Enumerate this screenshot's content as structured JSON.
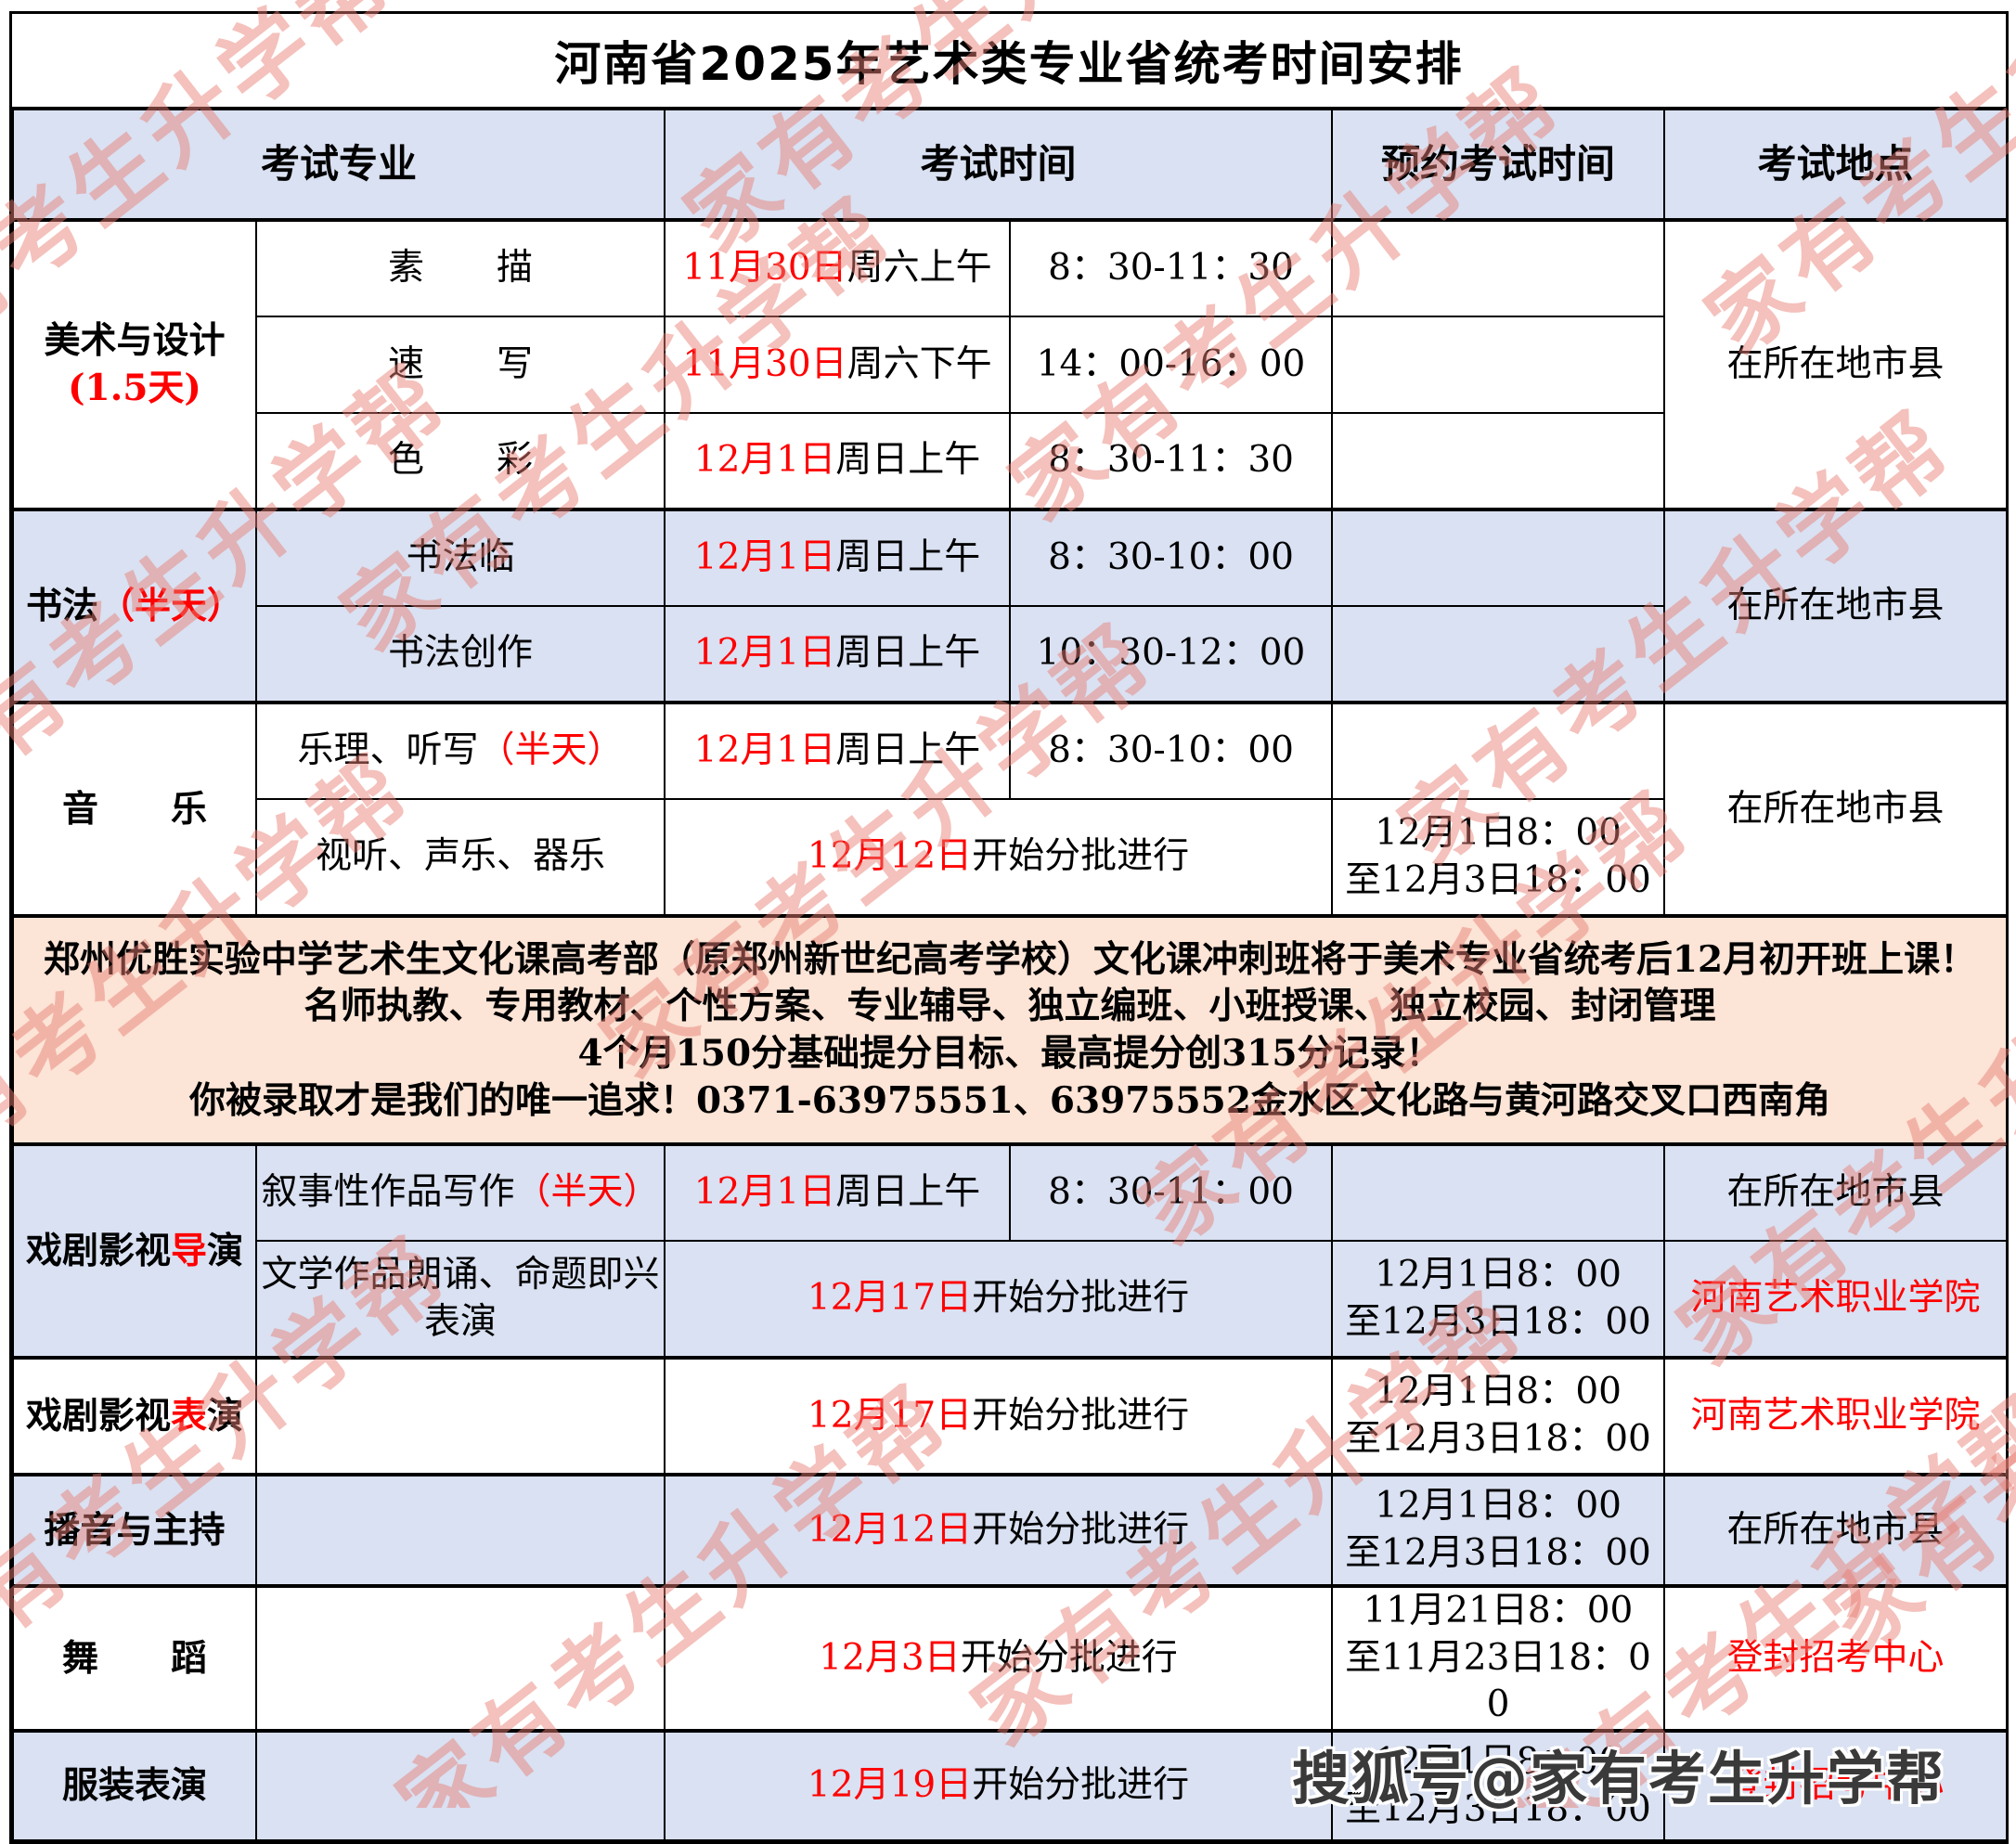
{
  "title": "河南省2025年艺术类专业省统考时间安排",
  "colors": {
    "band_blue": "#D9E1F2",
    "notice_bg": "#FCE4D6",
    "accent_red": "#FF0000",
    "watermark_pink": "#E97D73"
  },
  "table": {
    "headers": {
      "exam_major": "考试专业",
      "exam_time": "考试时间",
      "booking_time": "预约考试时间",
      "exam_location": "考试地点"
    },
    "art_design": {
      "name": "美术与设计",
      "days": "(1.5天)",
      "sub": [
        {
          "subject": "素　　描",
          "date": "11月30日",
          "period": "周六上午",
          "time": "8：30-11：30"
        },
        {
          "subject": "速　　写",
          "date": "11月30日",
          "period": "周六下午",
          "time": "14：00-16：00"
        },
        {
          "subject": "色　　彩",
          "date": "12月1日",
          "period": "周日上午",
          "time": "8：30-11：30"
        }
      ],
      "location": "在所在地市县"
    },
    "calligraphy": {
      "name": "书法",
      "days": "（半天）",
      "sub": [
        {
          "subject": "书法临",
          "date": "12月1日",
          "period": "周日上午",
          "time": "8：30-10：00"
        },
        {
          "subject": "书法创作",
          "date": "12月1日",
          "period": "周日上午",
          "time": "10：30-12：00"
        }
      ],
      "location": "在所在地市县"
    },
    "music": {
      "name": "音　　乐",
      "sub1": {
        "subject": "乐理、听写",
        "subject_red": "（半天）",
        "date": "12月1日",
        "period": "周日上午",
        "time": "8：30-10：00"
      },
      "sub2": {
        "subject": "视听、声乐、器乐",
        "date": "12月12日",
        "rest": "开始分批进行",
        "booking1": "12月1日8：00",
        "booking2": "至12月3日18：00"
      },
      "location": "在所在地市县"
    },
    "notice": {
      "line1": "郑州优胜实验中学艺术生文化课高考部（原郑州新世纪高考学校）文化课冲刺班将于美术专业省统考后12月初开班上课！",
      "line2": "名师执教、专用教材、个性方案、专业辅导、独立编班、小班授课、独立校园、封闭管理",
      "line3": "4个月150分基础提分目标、最高提分创315分记录！",
      "line4": "你被录取才是我们的唯一追求！0371-63975551、63975552金水区文化路与黄河路交叉口西南角"
    },
    "drama_directing": {
      "name_pre": "戏剧影视",
      "name_red": "导",
      "name_post": "演",
      "sub1": {
        "subject": "叙事性作品写作",
        "subject_red": "（半天）",
        "date": "12月1日",
        "period": "周日上午",
        "time": "8：30-11：00",
        "location": "在所在地市县"
      },
      "sub2": {
        "subject": "文学作品朗诵、命题即兴表演",
        "date": "12月17日",
        "rest": "开始分批进行",
        "booking1": "12月1日8：00",
        "booking2": "至12月3日18：00",
        "location": "河南艺术职业学院"
      }
    },
    "drama_acting": {
      "name_pre": "戏剧影视",
      "name_red": "表",
      "name_post": "演",
      "date": "12月17日",
      "rest": "开始分批进行",
      "booking1": "12月1日8：00",
      "booking2": "至12月3日18：00",
      "location": "河南艺术职业学院"
    },
    "broadcasting": {
      "name": "播音与主持",
      "date": "12月12日",
      "rest": "开始分批进行",
      "booking1": "12月1日8：00",
      "booking2": "至12月3日18：00",
      "location": "在所在地市县"
    },
    "dance": {
      "name": "舞　　蹈",
      "date": "12月3日",
      "rest": "开始分批进行",
      "booking1": "11月21日8：00",
      "booking2": "至11月23日18：00",
      "location": "登封招考中心"
    },
    "fashion": {
      "name": "服装表演",
      "date": "12月19日",
      "rest": "开始分批进行",
      "booking1": "12月1日8：00",
      "booking2": "至12月3日18：00",
      "location": "登封招考中心"
    }
  },
  "watermark": {
    "diagonal": "家有考生升学帮",
    "sohu": "搜狐号@家有考生升学帮",
    "positions": [
      [
        -120,
        430
      ],
      [
        790,
        270
      ],
      [
        1890,
        380
      ],
      [
        -60,
        880
      ],
      [
        420,
        700
      ],
      [
        1140,
        560
      ],
      [
        1560,
        930
      ],
      [
        -100,
        1300
      ],
      [
        700,
        1160
      ],
      [
        1280,
        1340
      ],
      [
        1860,
        1470
      ],
      [
        -60,
        1820
      ],
      [
        480,
        1980
      ],
      [
        1100,
        1880
      ],
      [
        1680,
        1990
      ],
      [
        2020,
        1780
      ]
    ]
  }
}
